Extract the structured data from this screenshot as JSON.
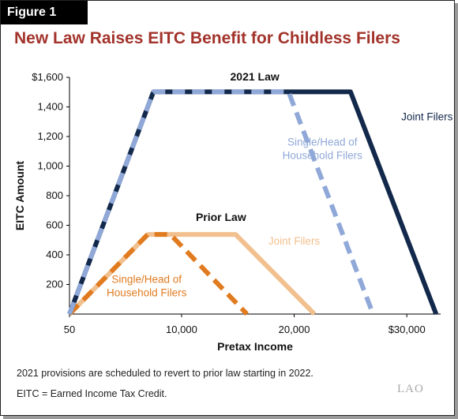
{
  "figure_label": "Figure 1",
  "title": "New Law Raises EITC Benefit for Childless Filers",
  "footnotes": [
    "2021 provisions are scheduled to revert to prior law starting in 2022.",
    "EITC = Earned Income Tax Credit."
  ],
  "logo": "LAO",
  "chart_data": {
    "type": "line",
    "xlabel": "Pretax Income",
    "ylabel": "EITC Amount",
    "x_ticks": [
      {
        "value": 50,
        "label": "50"
      },
      {
        "value": 10000,
        "label": "10,000"
      },
      {
        "value": 20000,
        "label": "20,000"
      },
      {
        "value": 30000,
        "label": "$30,000"
      }
    ],
    "y_ticks": [
      {
        "value": 200,
        "label": "200"
      },
      {
        "value": 400,
        "label": "400"
      },
      {
        "value": 600,
        "label": "600"
      },
      {
        "value": 800,
        "label": "800"
      },
      {
        "value": 1000,
        "label": "1,000"
      },
      {
        "value": 1200,
        "label": "1,200"
      },
      {
        "value": 1400,
        "label": "1,400"
      },
      {
        "value": 1600,
        "label": "$1,600"
      }
    ],
    "xlim": [
      50,
      33000
    ],
    "ylim": [
      0,
      1600
    ],
    "group_labels": [
      {
        "text": "2021 Law",
        "anchor_x": 16500,
        "anchor_y": 1600
      },
      {
        "text": "Prior Law",
        "anchor_x": 13500,
        "anchor_y": 650
      }
    ],
    "series": [
      {
        "name": "Joint Filers",
        "group": "2021 Law",
        "color": "#13294b",
        "dashed": false,
        "x": [
          50,
          7500,
          25000,
          32600
        ],
        "y": [
          0,
          1502,
          1502,
          0
        ],
        "label_at": [
          29500,
          1310
        ]
      },
      {
        "name": "Single/Head of Household Filers",
        "group": "2021 Law",
        "color": "#8fa8d8",
        "dashed": true,
        "x": [
          50,
          7500,
          19500,
          27000
        ],
        "y": [
          0,
          1502,
          1502,
          0
        ],
        "label_at": [
          22500,
          1140
        ]
      },
      {
        "name": "Joint Filers",
        "group": "Prior Law",
        "color": "#f2c08e",
        "dashed": false,
        "x": [
          50,
          7000,
          14800,
          21800
        ],
        "y": [
          0,
          538,
          538,
          0
        ],
        "label_at": [
          20000,
          470
        ]
      },
      {
        "name": "Single/Head of Household Filers",
        "group": "Prior Law",
        "color": "#e07b20",
        "dashed": true,
        "x": [
          50,
          7000,
          9000,
          15800
        ],
        "y": [
          0,
          538,
          538,
          0
        ],
        "label_at": [
          6900,
          210
        ]
      }
    ]
  }
}
